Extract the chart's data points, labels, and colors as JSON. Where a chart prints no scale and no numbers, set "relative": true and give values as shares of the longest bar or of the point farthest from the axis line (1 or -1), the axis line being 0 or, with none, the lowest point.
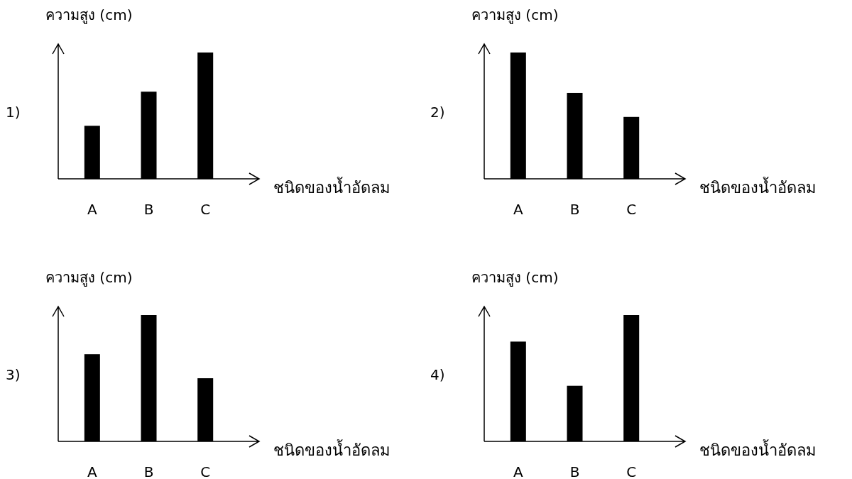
{
  "chart_data": [
    {
      "type": "bar",
      "title": "1)",
      "ylabel": "ความสูง (cm)",
      "xlabel": "ชนิดของน้ำอัดลม",
      "categories": [
        "A",
        "B",
        "C"
      ],
      "values": [
        0.42,
        0.69,
        1
      ],
      "color": "#000000",
      "relative": true
    },
    {
      "type": "bar",
      "title": "2)",
      "ylabel": "ความสูง (cm)",
      "xlabel": "ชนิดของน้ำอัดลม",
      "categories": [
        "A",
        "B",
        "C"
      ],
      "values": [
        1,
        0.68,
        0.49
      ],
      "color": "#000000",
      "relative": true
    },
    {
      "type": "bar",
      "title": "3)",
      "ylabel": "ความสูง (cm)",
      "xlabel": "ชนิดของน้ำอัดลม",
      "categories": [
        "A",
        "B",
        "C"
      ],
      "values": [
        0.69,
        1,
        0.5
      ],
      "color": "#000000",
      "relative": true
    },
    {
      "type": "bar",
      "title": "4)",
      "ylabel": "ความสูง (cm)",
      "xlabel": "ชนิดของน้ำอัดลม",
      "categories": [
        "A",
        "B",
        "C"
      ],
      "values": [
        0.79,
        0.44,
        1
      ],
      "color": "#000000",
      "relative": true
    }
  ]
}
